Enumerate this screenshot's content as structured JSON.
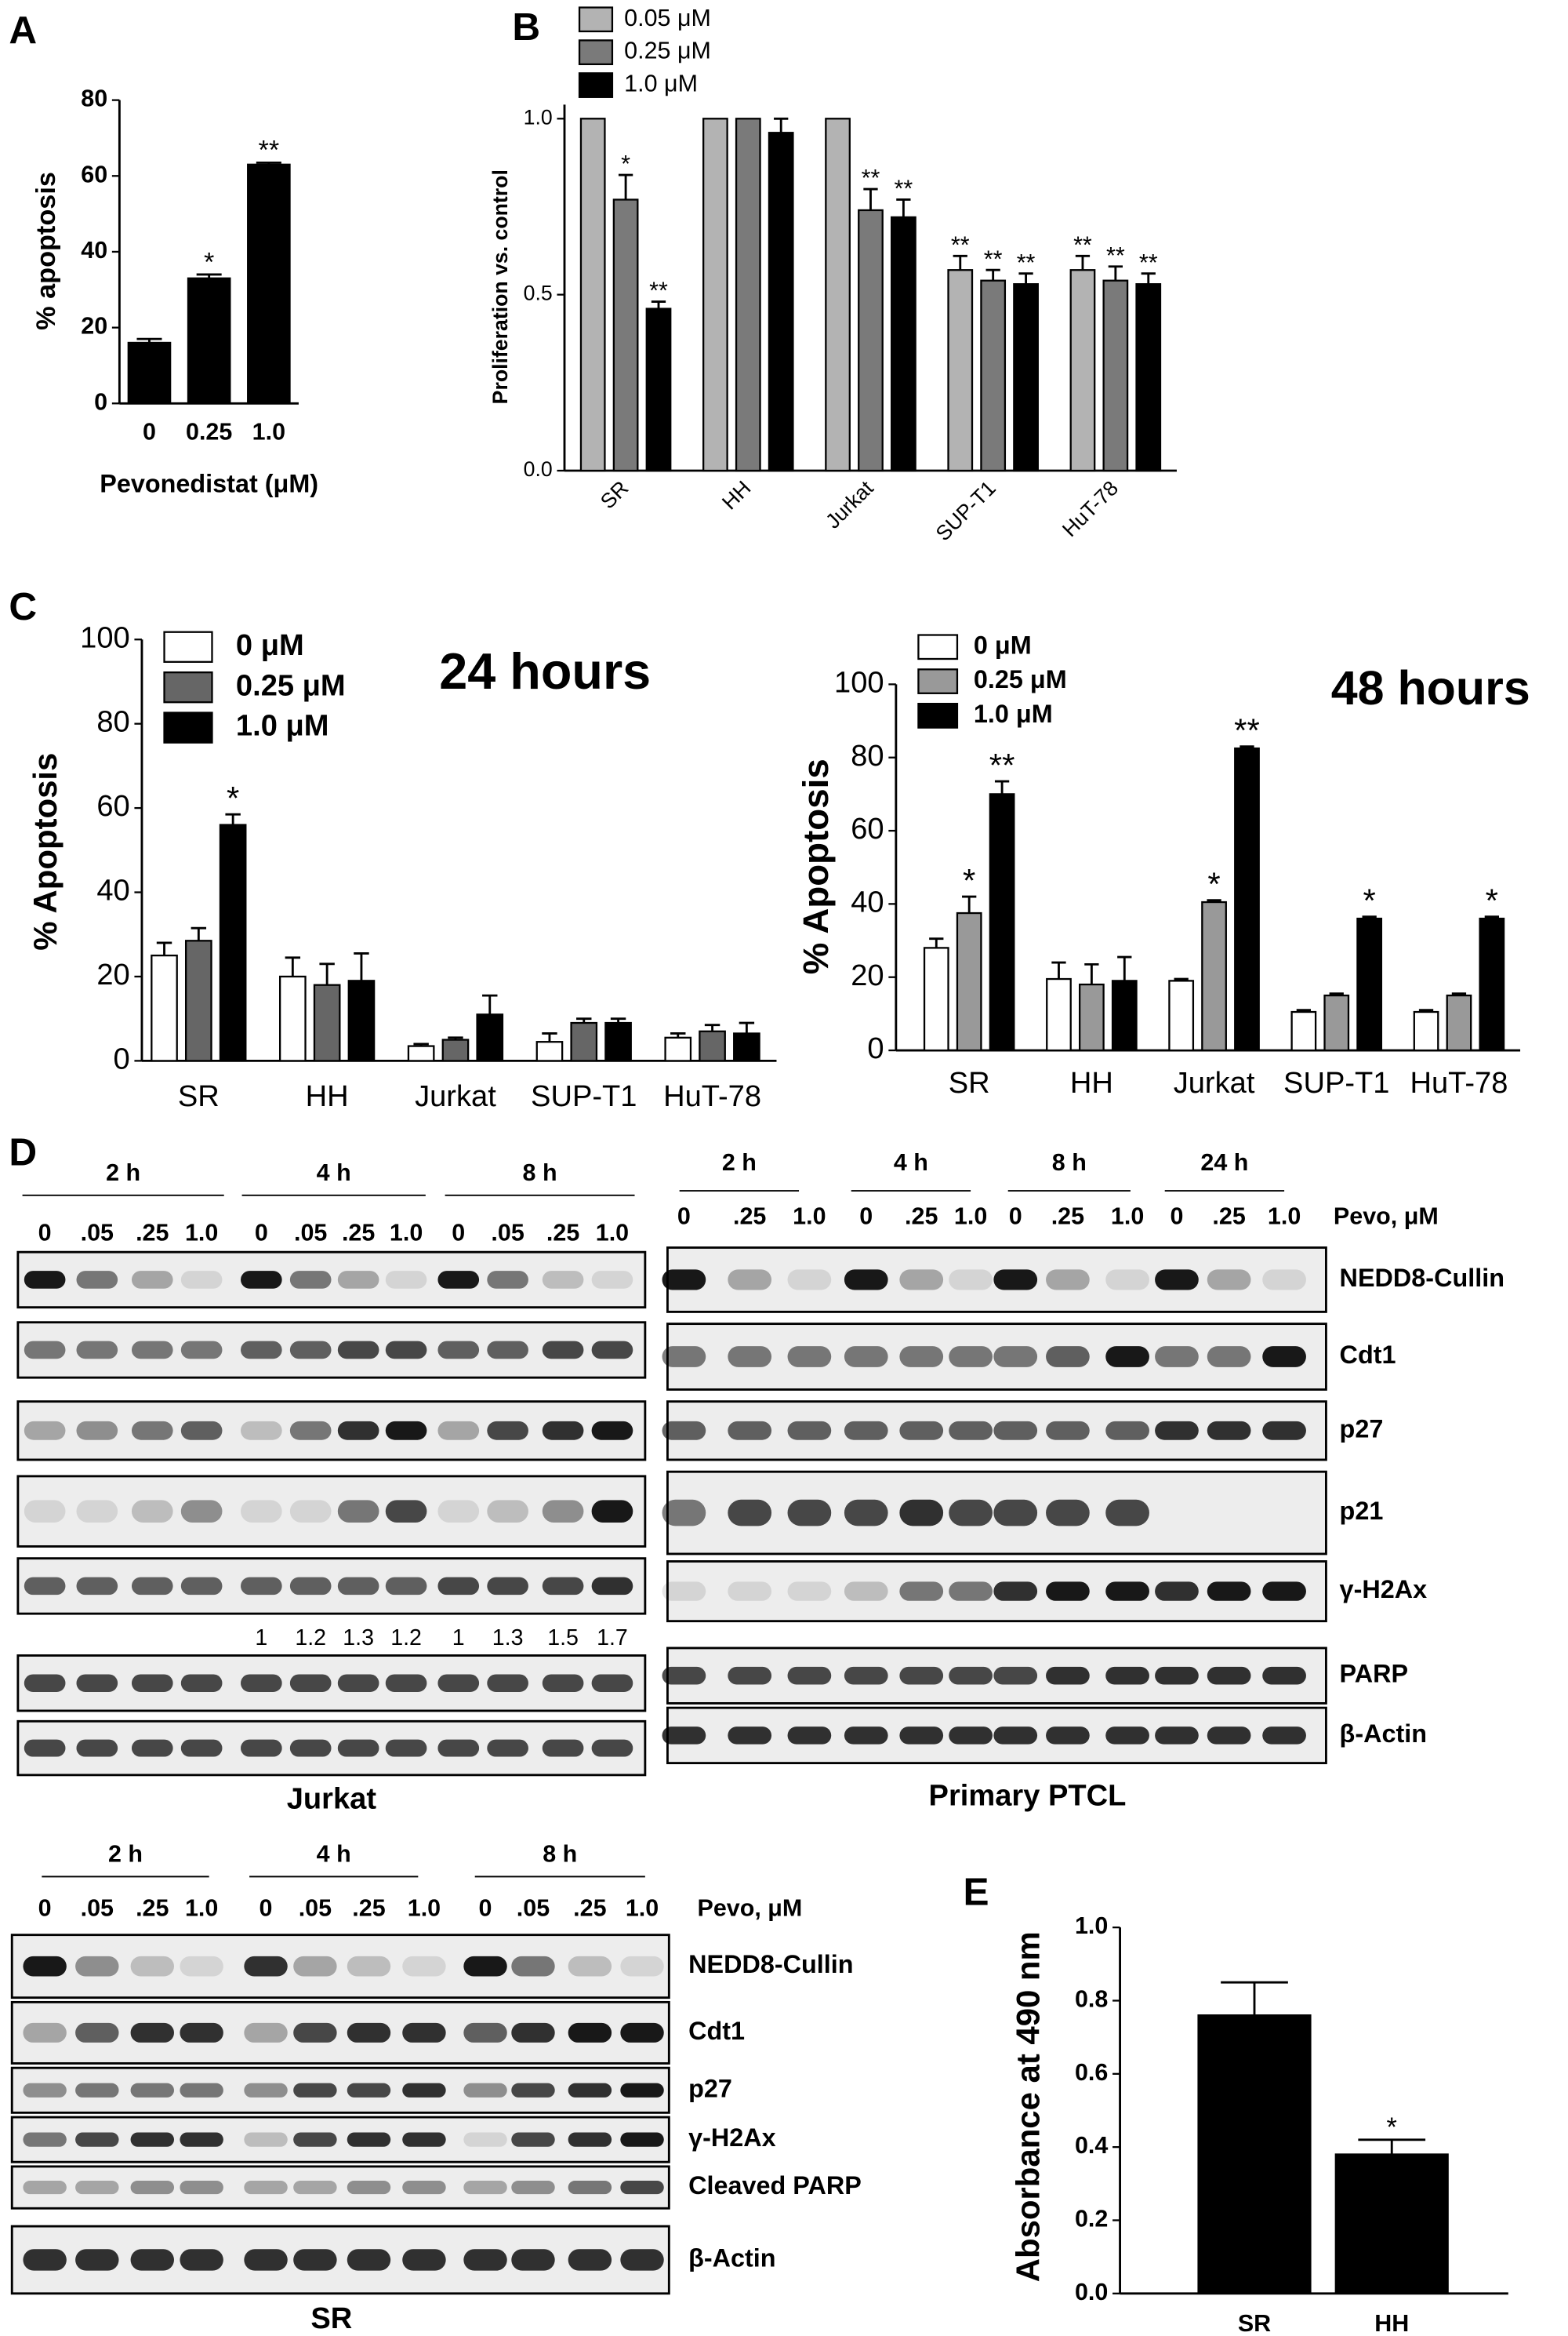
{
  "chart_data": [
    {
      "type": "bar",
      "panel_label": "A",
      "ylabel": "% apoptosis",
      "xlabel": "Pevonedistat (μM)",
      "categories": [
        "0",
        "0.25",
        "1.0"
      ],
      "values": [
        16,
        33,
        63
      ],
      "errors": [
        1,
        1,
        0.5
      ],
      "annotations": [
        null,
        "*",
        "**"
      ],
      "color": "#000000",
      "ylim": [
        0,
        80
      ],
      "yticks": [
        0,
        20,
        40,
        60,
        80
      ]
    },
    {
      "type": "bar",
      "panel_label": "B",
      "ylabel": "Proliferation vs. control",
      "categories": [
        "SR",
        "HH",
        "Jurkat",
        "SUP-T1",
        "HuT-78"
      ],
      "series": [
        {
          "name": "0.05 μM",
          "color": "#b3b3b3",
          "values": [
            1,
            1,
            1,
            0.57,
            0.57
          ],
          "errors": [
            null,
            null,
            null,
            0.04,
            0.04
          ],
          "annotations": [
            null,
            null,
            null,
            "**",
            "**"
          ]
        },
        {
          "name": "0.25 μM",
          "color": "#7a7a7a",
          "values": [
            0.77,
            1,
            0.74,
            0.54,
            0.54
          ],
          "errors": [
            0.07,
            null,
            0.06,
            0.03,
            0.04
          ],
          "annotations": [
            "*",
            null,
            "**",
            "**",
            "**"
          ]
        },
        {
          "name": "1.0 μM",
          "color": "#000000",
          "values": [
            0.46,
            0.96,
            0.72,
            0.53,
            0.53
          ],
          "errors": [
            0.02,
            0.04,
            0.05,
            0.03,
            0.03
          ],
          "annotations": [
            "**",
            null,
            "**",
            "**",
            "**"
          ]
        }
      ],
      "ylim": [
        0,
        1.04
      ],
      "yticks": [
        {
          "value": 0,
          "label": "0.0"
        },
        0.5,
        {
          "value": 1,
          "label": "1.0"
        }
      ],
      "legend": "top"
    },
    {
      "type": "bar",
      "panel_label": "C",
      "title": "24 hours",
      "ylabel": "% Apoptosis",
      "categories": [
        "SR",
        "HH",
        "Jurkat",
        "SUP-T1",
        "HuT-78"
      ],
      "series": [
        {
          "name": "0 μM",
          "color": "#ffffff",
          "values": [
            25,
            20,
            3.5,
            4.5,
            5.5
          ],
          "errors": [
            3,
            4.5,
            0.5,
            2,
            1
          ],
          "annotations": [
            null,
            null,
            null,
            null,
            null
          ]
        },
        {
          "name": "0.25 μM",
          "color": "#666666",
          "values": [
            28.5,
            18,
            5,
            9,
            7
          ],
          "errors": [
            3,
            5,
            0.5,
            1,
            1.5
          ],
          "annotations": [
            null,
            null,
            null,
            null,
            null
          ]
        },
        {
          "name": "1.0 μM",
          "color": "#000000",
          "values": [
            56,
            19,
            11,
            9,
            6.5
          ],
          "errors": [
            2.5,
            6.5,
            4.5,
            1,
            2.5
          ],
          "annotations": [
            "*",
            null,
            null,
            null,
            null
          ]
        }
      ],
      "ylim": [
        0,
        100
      ],
      "yticks": [
        0,
        20,
        40,
        60,
        80,
        100
      ],
      "legend": "upper left"
    },
    {
      "type": "bar",
      "title": "48 hours",
      "ylabel": "% Apoptosis",
      "categories": [
        "SR",
        "HH",
        "Jurkat",
        "SUP-T1",
        "HuT-78"
      ],
      "series": [
        {
          "name": "0 μM",
          "color": "#ffffff",
          "values": [
            28,
            19.5,
            19,
            10.5,
            10.5
          ],
          "errors": [
            2.5,
            4.5,
            0.5,
            0.5,
            0.5
          ],
          "annotations": [
            null,
            null,
            null,
            null,
            null
          ]
        },
        {
          "name": "0.25 μM",
          "color": "#999999",
          "values": [
            37.5,
            18,
            40.5,
            15,
            15
          ],
          "errors": [
            4.5,
            5.5,
            0.5,
            0.5,
            0.5
          ],
          "annotations": [
            "*",
            null,
            "*",
            null,
            null
          ]
        },
        {
          "name": "1.0 μM",
          "color": "#000000",
          "values": [
            70,
            19,
            82.5,
            36,
            36
          ],
          "errors": [
            3.5,
            6.5,
            0.5,
            0.5,
            0.5
          ],
          "annotations": [
            "**",
            null,
            "**",
            "*",
            "*"
          ]
        }
      ],
      "ylim": [
        0,
        100
      ],
      "yticks": [
        0,
        20,
        40,
        60,
        80,
        100
      ],
      "legend": "upper left"
    },
    {
      "type": "bar",
      "panel_label": "E",
      "ylabel": "Absorbance at 490 nm",
      "categories": [
        "SR",
        "HH"
      ],
      "values": [
        0.76,
        0.38
      ],
      "errors": [
        0.09,
        0.04
      ],
      "annotations": [
        null,
        "*"
      ],
      "color": "#000000",
      "ylim": [
        0,
        1.0
      ],
      "yticks": [
        {
          "value": 0,
          "label": "0.0"
        },
        0.2,
        0.4,
        0.6,
        0.8,
        {
          "value": 1,
          "label": "1.0"
        }
      ]
    }
  ],
  "panel_d": {
    "panel_label": "D",
    "blots": [
      {
        "caption": "Jurkat",
        "groups": [
          {
            "label": "2 h",
            "doses": [
              "0",
              ".05",
              ".25",
              "1.0"
            ]
          },
          {
            "label": "4 h",
            "doses": [
              "0",
              ".05",
              ".25",
              "1.0"
            ]
          },
          {
            "label": "8 h",
            "doses": [
              "0",
              ".05",
              ".25",
              "1.0"
            ]
          }
        ],
        "quantification": [
          1,
          1.2,
          1.3,
          1.2,
          1,
          1.3,
          1.5,
          1.7
        ]
      },
      {
        "caption": "Primary PTCL",
        "dose_unit": "Pevo, μM",
        "groups": [
          {
            "label": "2 h",
            "doses": [
              "0",
              ".25",
              "1.0"
            ]
          },
          {
            "label": "4 h",
            "doses": [
              "0",
              ".25",
              "1.0"
            ]
          },
          {
            "label": "8 h",
            "doses": [
              "0",
              ".25",
              "1.0"
            ]
          },
          {
            "label": "24 h",
            "doses": [
              "0",
              ".25",
              "1.0"
            ]
          }
        ],
        "rows": [
          "NEDD8-Cullin",
          "Cdt1",
          "p27",
          "p21",
          "γ-H2Ax",
          "PARP",
          "β-Actin"
        ]
      },
      {
        "caption": "SR",
        "dose_unit": "Pevo, μM",
        "groups": [
          {
            "label": "2 h",
            "doses": [
              "0",
              ".05",
              ".25",
              "1.0"
            ]
          },
          {
            "label": "4 h",
            "doses": [
              "0",
              ".05",
              ".25",
              "1.0"
            ]
          },
          {
            "label": "8 h",
            "doses": [
              "0",
              ".05",
              ".25",
              "1.0"
            ]
          }
        ],
        "rows": [
          "NEDD8-Cullin",
          "Cdt1",
          "p27",
          "γ-H2Ax",
          "Cleaved PARP",
          "β-Actin"
        ]
      }
    ]
  }
}
